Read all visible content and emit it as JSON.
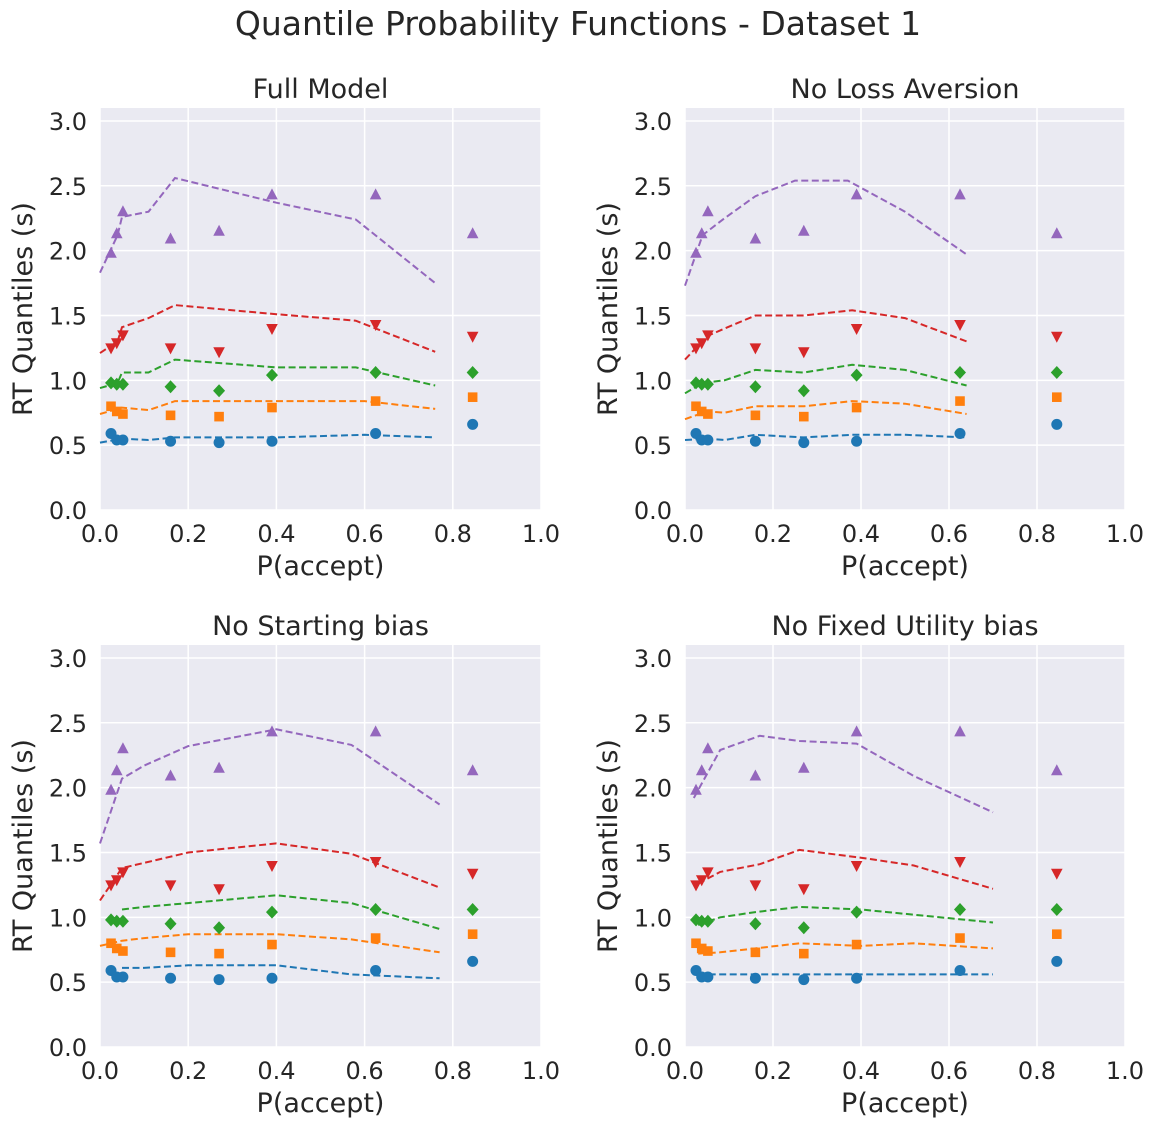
{
  "suptitle": "Quantile Probability Functions - Dataset 1",
  "chart_data": [
    {
      "type": "scatter",
      "title": "Full Model",
      "xlabel": "P(accept)",
      "ylabel": "RT Quantiles (s)",
      "xlim": [
        0.0,
        1.0
      ],
      "ylim": [
        0.0,
        3.1
      ],
      "xticks": [
        "0.0",
        "0.2",
        "0.4",
        "0.6",
        "0.8",
        "1.0"
      ],
      "yticks": [
        "0.0",
        "0.5",
        "1.0",
        "1.5",
        "2.0",
        "2.5",
        "3.0"
      ],
      "grid": true,
      "observed_x": [
        0.025,
        0.038,
        0.052,
        0.16,
        0.27,
        0.39,
        0.625,
        0.845
      ],
      "observed": [
        {
          "color": "#1f77b4",
          "marker": "circle",
          "values": [
            0.59,
            0.54,
            0.54,
            0.53,
            0.52,
            0.53,
            0.59,
            0.66
          ]
        },
        {
          "color": "#ff7f0e",
          "marker": "square",
          "values": [
            0.8,
            0.76,
            0.74,
            0.73,
            0.72,
            0.79,
            0.84,
            0.87
          ]
        },
        {
          "color": "#2ca02c",
          "marker": "diamond",
          "values": [
            0.98,
            0.97,
            0.97,
            0.95,
            0.92,
            1.04,
            1.06,
            1.06
          ]
        },
        {
          "color": "#d62728",
          "marker": "triangle-down",
          "values": [
            1.25,
            1.29,
            1.35,
            1.25,
            1.22,
            1.4,
            1.43,
            1.34
          ]
        },
        {
          "color": "#9467bd",
          "marker": "triangle-up",
          "values": [
            1.98,
            2.13,
            2.3,
            2.09,
            2.15,
            2.43,
            2.43,
            2.13
          ]
        }
      ],
      "predicted": [
        {
          "color": "#1f77b4",
          "x": [
            0.0,
            0.05,
            0.11,
            0.17,
            0.4,
            0.6,
            0.76
          ],
          "y": [
            0.52,
            0.55,
            0.54,
            0.56,
            0.56,
            0.58,
            0.56
          ]
        },
        {
          "color": "#ff7f0e",
          "x": [
            0.0,
            0.05,
            0.11,
            0.17,
            0.4,
            0.6,
            0.76
          ],
          "y": [
            0.74,
            0.79,
            0.77,
            0.84,
            0.84,
            0.84,
            0.78
          ]
        },
        {
          "color": "#2ca02c",
          "x": [
            0.0,
            0.04,
            0.05,
            0.11,
            0.17,
            0.4,
            0.58,
            0.76
          ],
          "y": [
            0.94,
            0.98,
            1.06,
            1.06,
            1.16,
            1.1,
            1.1,
            0.96
          ]
        },
        {
          "color": "#d62728",
          "x": [
            0.0,
            0.04,
            0.05,
            0.11,
            0.17,
            0.4,
            0.58,
            0.76
          ],
          "y": [
            1.21,
            1.3,
            1.41,
            1.48,
            1.58,
            1.51,
            1.46,
            1.22
          ]
        },
        {
          "color": "#9467bd",
          "x": [
            0.0,
            0.04,
            0.05,
            0.11,
            0.17,
            0.4,
            0.58,
            0.76
          ],
          "y": [
            1.83,
            2.12,
            2.26,
            2.3,
            2.56,
            2.37,
            2.24,
            1.75
          ]
        }
      ]
    },
    {
      "type": "scatter",
      "title": "No Loss Aversion",
      "xlabel": "P(accept)",
      "ylabel": "RT Quantiles (s)",
      "xlim": [
        0.0,
        1.0
      ],
      "ylim": [
        0.0,
        3.1
      ],
      "xticks": [
        "0.0",
        "0.2",
        "0.4",
        "0.6",
        "0.8",
        "1.0"
      ],
      "yticks": [
        "0.0",
        "0.5",
        "1.0",
        "1.5",
        "2.0",
        "2.5",
        "3.0"
      ],
      "grid": true,
      "observed_x": [
        0.025,
        0.038,
        0.052,
        0.16,
        0.27,
        0.39,
        0.625,
        0.845
      ],
      "observed": [
        {
          "color": "#1f77b4",
          "marker": "circle",
          "values": [
            0.59,
            0.54,
            0.54,
            0.53,
            0.52,
            0.53,
            0.59,
            0.66
          ]
        },
        {
          "color": "#ff7f0e",
          "marker": "square",
          "values": [
            0.8,
            0.76,
            0.74,
            0.73,
            0.72,
            0.79,
            0.84,
            0.87
          ]
        },
        {
          "color": "#2ca02c",
          "marker": "diamond",
          "values": [
            0.98,
            0.97,
            0.97,
            0.95,
            0.92,
            1.04,
            1.06,
            1.06
          ]
        },
        {
          "color": "#d62728",
          "marker": "triangle-down",
          "values": [
            1.25,
            1.29,
            1.35,
            1.25,
            1.22,
            1.4,
            1.43,
            1.34
          ]
        },
        {
          "color": "#9467bd",
          "marker": "triangle-up",
          "values": [
            1.98,
            2.13,
            2.3,
            2.09,
            2.15,
            2.43,
            2.43,
            2.13
          ]
        }
      ],
      "predicted": [
        {
          "color": "#1f77b4",
          "x": [
            0.0,
            0.05,
            0.09,
            0.16,
            0.27,
            0.38,
            0.5,
            0.64
          ],
          "y": [
            0.54,
            0.55,
            0.54,
            0.58,
            0.56,
            0.58,
            0.58,
            0.56
          ]
        },
        {
          "color": "#ff7f0e",
          "x": [
            0.0,
            0.05,
            0.09,
            0.16,
            0.27,
            0.38,
            0.5,
            0.64
          ],
          "y": [
            0.7,
            0.76,
            0.75,
            0.8,
            0.8,
            0.84,
            0.82,
            0.74
          ]
        },
        {
          "color": "#2ca02c",
          "x": [
            0.0,
            0.04,
            0.09,
            0.16,
            0.27,
            0.38,
            0.5,
            0.64
          ],
          "y": [
            0.9,
            0.98,
            1.0,
            1.08,
            1.06,
            1.12,
            1.08,
            0.96
          ]
        },
        {
          "color": "#d62728",
          "x": [
            0.0,
            0.05,
            0.09,
            0.16,
            0.27,
            0.38,
            0.5,
            0.64
          ],
          "y": [
            1.16,
            1.34,
            1.4,
            1.5,
            1.5,
            1.54,
            1.48,
            1.3
          ]
        },
        {
          "color": "#9467bd",
          "x": [
            0.0,
            0.04,
            0.09,
            0.16,
            0.25,
            0.37,
            0.5,
            0.64
          ],
          "y": [
            1.73,
            2.12,
            2.25,
            2.42,
            2.54,
            2.54,
            2.3,
            1.97
          ]
        }
      ]
    },
    {
      "type": "scatter",
      "title": "No Starting bias",
      "xlabel": "P(accept)",
      "ylabel": "RT Quantiles (s)",
      "xlim": [
        0.0,
        1.0
      ],
      "ylim": [
        0.0,
        3.1
      ],
      "xticks": [
        "0.0",
        "0.2",
        "0.4",
        "0.6",
        "0.8",
        "1.0"
      ],
      "yticks": [
        "0.0",
        "0.5",
        "1.0",
        "1.5",
        "2.0",
        "2.5",
        "3.0"
      ],
      "grid": true,
      "observed_x": [
        0.025,
        0.038,
        0.052,
        0.16,
        0.27,
        0.39,
        0.625,
        0.845
      ],
      "observed": [
        {
          "color": "#1f77b4",
          "marker": "circle",
          "values": [
            0.59,
            0.54,
            0.54,
            0.53,
            0.52,
            0.53,
            0.59,
            0.66
          ]
        },
        {
          "color": "#ff7f0e",
          "marker": "square",
          "values": [
            0.8,
            0.76,
            0.74,
            0.73,
            0.72,
            0.79,
            0.84,
            0.87
          ]
        },
        {
          "color": "#2ca02c",
          "marker": "diamond",
          "values": [
            0.98,
            0.97,
            0.97,
            0.95,
            0.92,
            1.04,
            1.06,
            1.06
          ]
        },
        {
          "color": "#d62728",
          "marker": "triangle-down",
          "values": [
            1.25,
            1.29,
            1.35,
            1.25,
            1.22,
            1.4,
            1.43,
            1.34
          ]
        },
        {
          "color": "#9467bd",
          "marker": "triangle-up",
          "values": [
            1.98,
            2.13,
            2.3,
            2.09,
            2.15,
            2.43,
            2.43,
            2.13
          ]
        }
      ],
      "predicted": [
        {
          "color": "#1f77b4",
          "x": [
            0.05,
            0.1,
            0.2,
            0.4,
            0.57,
            0.77
          ],
          "y": [
            0.61,
            0.61,
            0.63,
            0.63,
            0.56,
            0.53
          ]
        },
        {
          "color": "#ff7f0e",
          "x": [
            0.0,
            0.05,
            0.1,
            0.2,
            0.4,
            0.57,
            0.77
          ],
          "y": [
            0.78,
            0.82,
            0.84,
            0.87,
            0.87,
            0.83,
            0.73
          ]
        },
        {
          "color": "#2ca02c",
          "x": [
            0.05,
            0.1,
            0.2,
            0.4,
            0.57,
            0.77
          ],
          "y": [
            1.06,
            1.08,
            1.11,
            1.17,
            1.11,
            0.91
          ]
        },
        {
          "color": "#d62728",
          "x": [
            0.0,
            0.05,
            0.1,
            0.2,
            0.4,
            0.57,
            0.77
          ],
          "y": [
            1.13,
            1.38,
            1.42,
            1.5,
            1.57,
            1.49,
            1.23
          ]
        },
        {
          "color": "#9467bd",
          "x": [
            0.0,
            0.05,
            0.1,
            0.2,
            0.4,
            0.57,
            0.77
          ],
          "y": [
            1.57,
            2.07,
            2.17,
            2.32,
            2.45,
            2.33,
            1.87
          ]
        }
      ]
    },
    {
      "type": "scatter",
      "title": "No Fixed Utility bias",
      "xlabel": "P(accept)",
      "ylabel": "RT Quantiles (s)",
      "xlim": [
        0.0,
        1.0
      ],
      "ylim": [
        0.0,
        3.1
      ],
      "xticks": [
        "0.0",
        "0.2",
        "0.4",
        "0.6",
        "0.8",
        "1.0"
      ],
      "yticks": [
        "0.0",
        "0.5",
        "1.0",
        "1.5",
        "2.0",
        "2.5",
        "3.0"
      ],
      "grid": true,
      "observed_x": [
        0.025,
        0.038,
        0.052,
        0.16,
        0.27,
        0.39,
        0.625,
        0.845
      ],
      "observed": [
        {
          "color": "#1f77b4",
          "marker": "circle",
          "values": [
            0.59,
            0.54,
            0.54,
            0.53,
            0.52,
            0.53,
            0.59,
            0.66
          ]
        },
        {
          "color": "#ff7f0e",
          "marker": "square",
          "values": [
            0.8,
            0.76,
            0.74,
            0.73,
            0.72,
            0.79,
            0.84,
            0.87
          ]
        },
        {
          "color": "#2ca02c",
          "marker": "diamond",
          "values": [
            0.98,
            0.97,
            0.97,
            0.95,
            0.92,
            1.04,
            1.06,
            1.06
          ]
        },
        {
          "color": "#d62728",
          "marker": "triangle-down",
          "values": [
            1.25,
            1.29,
            1.35,
            1.25,
            1.22,
            1.4,
            1.43,
            1.34
          ]
        },
        {
          "color": "#9467bd",
          "marker": "triangle-up",
          "values": [
            1.98,
            2.13,
            2.3,
            2.09,
            2.15,
            2.43,
            2.43,
            2.13
          ]
        }
      ],
      "predicted": [
        {
          "color": "#1f77b4",
          "x": [
            0.03,
            0.08,
            0.2,
            0.4,
            0.6,
            0.7
          ],
          "y": [
            0.56,
            0.56,
            0.56,
            0.56,
            0.56,
            0.56
          ]
        },
        {
          "color": "#ff7f0e",
          "x": [
            0.03,
            0.08,
            0.16,
            0.26,
            0.4,
            0.52,
            0.7
          ],
          "y": [
            0.72,
            0.73,
            0.76,
            0.8,
            0.78,
            0.8,
            0.76
          ]
        },
        {
          "color": "#2ca02c",
          "x": [
            0.03,
            0.08,
            0.16,
            0.26,
            0.4,
            0.52,
            0.7
          ],
          "y": [
            0.94,
            1.0,
            1.04,
            1.08,
            1.06,
            1.02,
            0.96
          ]
        },
        {
          "color": "#d62728",
          "x": [
            0.03,
            0.08,
            0.17,
            0.26,
            0.4,
            0.52,
            0.7
          ],
          "y": [
            1.26,
            1.35,
            1.41,
            1.52,
            1.46,
            1.4,
            1.22
          ]
        },
        {
          "color": "#9467bd",
          "x": [
            0.02,
            0.08,
            0.17,
            0.26,
            0.39,
            0.52,
            0.7
          ],
          "y": [
            1.92,
            2.29,
            2.4,
            2.36,
            2.34,
            2.09,
            1.81
          ]
        }
      ]
    }
  ]
}
